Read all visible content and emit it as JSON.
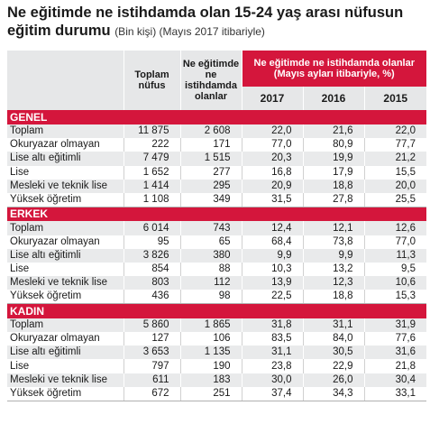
{
  "title": {
    "line1": "Ne eğitimde ne istihdamda olan 15-24 yaş arası nüfusun",
    "line2": "eğitim durumu",
    "subtitle": "(Bin kişi) (Mayıs 2017 itibariyle)"
  },
  "headers": {
    "total": "Toplam nüfus",
    "neet": "Ne eğitimde ne istihdamda olanlar",
    "rate_group": "Ne eğitimde ne istihdamda olanlar (Mayıs ayları itibariyle, %)",
    "years": [
      "2017",
      "2016",
      "2015"
    ]
  },
  "sections": [
    {
      "name": "GENEL",
      "rows": [
        {
          "label": "Toplam",
          "total": "11 875",
          "neet": "2 608",
          "y2017": "22,0",
          "y2016": "21,6",
          "y2015": "22,0"
        },
        {
          "label": "Okuryazar olmayan",
          "total": "222",
          "neet": "171",
          "y2017": "77,0",
          "y2016": "80,9",
          "y2015": "77,7"
        },
        {
          "label": "Lise altı eğitimli",
          "total": "7 479",
          "neet": "1 515",
          "y2017": "20,3",
          "y2016": "19,9",
          "y2015": "21,2"
        },
        {
          "label": "Lise",
          "total": "1 652",
          "neet": "277",
          "y2017": "16,8",
          "y2016": "17,9",
          "y2015": "15,5"
        },
        {
          "label": "Mesleki ve teknik lise",
          "total": "1 414",
          "neet": "295",
          "y2017": "20,9",
          "y2016": "18,8",
          "y2015": "20,0"
        },
        {
          "label": "Yüksek öğretim",
          "total": "1 108",
          "neet": "349",
          "y2017": "31,5",
          "y2016": "27,8",
          "y2015": "25,5"
        }
      ]
    },
    {
      "name": "ERKEK",
      "rows": [
        {
          "label": "Toplam",
          "total": "6 014",
          "neet": "743",
          "y2017": "12,4",
          "y2016": "12,1",
          "y2015": "12,6"
        },
        {
          "label": "Okuryazar olmayan",
          "total": "95",
          "neet": "65",
          "y2017": "68,4",
          "y2016": "73,8",
          "y2015": "77,0"
        },
        {
          "label": "Lise altı eğitimli",
          "total": "3 826",
          "neet": "380",
          "y2017": "9,9",
          "y2016": "9,9",
          "y2015": "11,3"
        },
        {
          "label": "Lise",
          "total": "854",
          "neet": "88",
          "y2017": "10,3",
          "y2016": "13,2",
          "y2015": "9,5"
        },
        {
          "label": "Mesleki ve teknik lise",
          "total": "803",
          "neet": "112",
          "y2017": "13,9",
          "y2016": "12,3",
          "y2015": "10,6"
        },
        {
          "label": "Yüksek öğretim",
          "total": "436",
          "neet": "98",
          "y2017": "22,5",
          "y2016": "18,8",
          "y2015": "15,3"
        }
      ]
    },
    {
      "name": "KADIN",
      "rows": [
        {
          "label": "Toplam",
          "total": "5 860",
          "neet": "1 865",
          "y2017": "31,8",
          "y2016": "31,1",
          "y2015": "31,9"
        },
        {
          "label": "Okuryazar olmayan",
          "total": "127",
          "neet": "106",
          "y2017": "83,5",
          "y2016": "84,0",
          "y2015": "77,6"
        },
        {
          "label": "Lise altı eğitimli",
          "total": "3 653",
          "neet": "1 135",
          "y2017": "31,1",
          "y2016": "30,5",
          "y2015": "31,6"
        },
        {
          "label": "Lise",
          "total": "797",
          "neet": "190",
          "y2017": "23,8",
          "y2016": "22,9",
          "y2015": "21,8"
        },
        {
          "label": "Mesleki ve teknik lise",
          "total": "611",
          "neet": "183",
          "y2017": "30,0",
          "y2016": "26,0",
          "y2015": "30,4"
        },
        {
          "label": "Yüksek öğretim",
          "total": "672",
          "neet": "251",
          "y2017": "37,4",
          "y2016": "34,3",
          "y2015": "33,1"
        }
      ]
    }
  ],
  "colors": {
    "section_red": "#d4163c",
    "header_grey": "#e6e7e8",
    "row_alt": "#e9eaeb"
  }
}
